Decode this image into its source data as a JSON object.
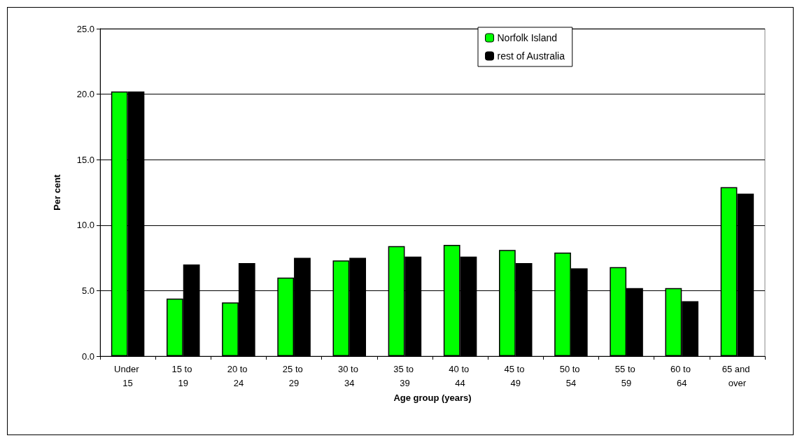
{
  "chart_data": {
    "type": "bar",
    "xlabel": "Age group (years)",
    "ylabel": "Per cent",
    "categories": [
      "Under 15",
      "15 to 19",
      "20 to 24",
      "25 to 29",
      "30 to 34",
      "35 to 39",
      "40 to 44",
      "45 to 49",
      "50 to 54",
      "55 to 59",
      "60 to 64",
      "65 and over"
    ],
    "series": [
      {
        "name": "Norfolk Island",
        "color": "#00ff00",
        "values": [
          20.2,
          4.4,
          4.1,
          6.0,
          7.3,
          8.4,
          8.5,
          8.1,
          7.9,
          6.8,
          5.2,
          12.9
        ]
      },
      {
        "name": "rest of Australia",
        "color": "#000000",
        "values": [
          20.2,
          7.0,
          7.1,
          7.5,
          7.5,
          7.6,
          7.6,
          7.1,
          6.7,
          5.2,
          4.2,
          12.4
        ]
      }
    ],
    "ylim": [
      0,
      25
    ],
    "yticks": [
      {
        "value": 0,
        "label": "0.0"
      },
      {
        "value": 5,
        "label": "5.0"
      },
      {
        "value": 10,
        "label": "10.0"
      },
      {
        "value": 15,
        "label": "15.0"
      },
      {
        "value": 20,
        "label": "20.0"
      },
      {
        "value": 25,
        "label": "25.0"
      }
    ],
    "grid": "y",
    "legend": "top"
  }
}
